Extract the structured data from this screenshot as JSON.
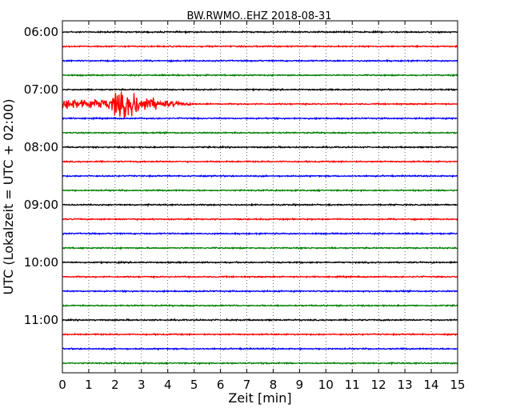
{
  "chart_data": {
    "type": "line",
    "title": "BW.RWMO..EHZ 2018-08-31",
    "xlabel": "Zeit  [min]",
    "ylabel": "UTC (Lokalzeit = UTC + 02:00)",
    "xlim": [
      0,
      15
    ],
    "x_ticks": [
      "0",
      "1",
      "2",
      "3",
      "4",
      "5",
      "6",
      "7",
      "8",
      "9",
      "10",
      "11",
      "12",
      "13",
      "14",
      "15"
    ],
    "y_tick_labels": [
      "06:00",
      "07:00",
      "08:00",
      "09:00",
      "10:00",
      "11:00"
    ],
    "trace_interval_min": 15,
    "grid": "vertical dotted",
    "series_colors": [
      "#000000",
      "#ff0000",
      "#0000ff",
      "#008000"
    ],
    "traces": [
      {
        "start": "06:00",
        "color": "#000000",
        "event": null
      },
      {
        "start": "06:15",
        "color": "#ff0000",
        "event": null
      },
      {
        "start": "06:30",
        "color": "#0000ff",
        "event": null
      },
      {
        "start": "06:45",
        "color": "#008000",
        "event": null
      },
      {
        "start": "07:00",
        "color": "#000000",
        "event": null
      },
      {
        "start": "07:15",
        "color": "#ff0000",
        "event": {
          "onset_min": 0.0,
          "peak_min": 2.2,
          "end_min": 5.2
        }
      },
      {
        "start": "07:30",
        "color": "#0000ff",
        "event": null
      },
      {
        "start": "07:45",
        "color": "#008000",
        "event": null
      },
      {
        "start": "08:00",
        "color": "#000000",
        "event": null
      },
      {
        "start": "08:15",
        "color": "#ff0000",
        "event": null
      },
      {
        "start": "08:30",
        "color": "#0000ff",
        "event": null
      },
      {
        "start": "08:45",
        "color": "#008000",
        "event": null
      },
      {
        "start": "09:00",
        "color": "#000000",
        "event": null
      },
      {
        "start": "09:15",
        "color": "#ff0000",
        "event": null
      },
      {
        "start": "09:30",
        "color": "#0000ff",
        "event": null
      },
      {
        "start": "09:45",
        "color": "#008000",
        "event": null
      },
      {
        "start": "10:00",
        "color": "#000000",
        "event": null
      },
      {
        "start": "10:15",
        "color": "#ff0000",
        "event": null
      },
      {
        "start": "10:30",
        "color": "#0000ff",
        "event": null
      },
      {
        "start": "10:45",
        "color": "#008000",
        "event": null
      },
      {
        "start": "11:00",
        "color": "#000000",
        "event": null
      },
      {
        "start": "11:15",
        "color": "#ff0000",
        "event": null
      },
      {
        "start": "11:30",
        "color": "#0000ff",
        "event": null
      },
      {
        "start": "11:45",
        "color": "#008000",
        "event": null
      }
    ]
  }
}
